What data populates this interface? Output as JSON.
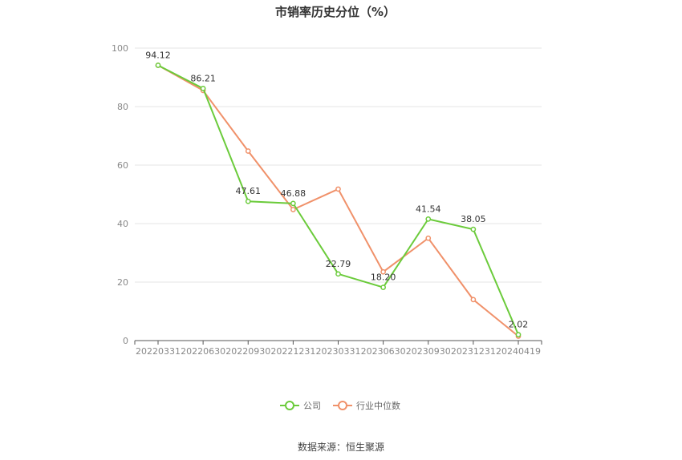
{
  "chart_data": {
    "type": "line",
    "title": "市销率历史分位（%）",
    "categories": [
      "20220331",
      "20220630",
      "20220930",
      "20221231",
      "20230331",
      "20230630",
      "20230930",
      "20231231",
      "20240419"
    ],
    "ylim": [
      0,
      100
    ],
    "yticks": [
      0,
      20,
      40,
      60,
      80,
      100
    ],
    "grid": true,
    "legend_position": "bottom",
    "series": [
      {
        "name": "公司",
        "color": "#6bcb3b",
        "values": [
          94.12,
          86.21,
          47.61,
          46.88,
          22.79,
          18.2,
          41.54,
          38.05,
          2.02
        ],
        "labels": [
          "94.12",
          "86.21",
          "47.61",
          "46.88",
          "22.79",
          "18.20",
          "41.54",
          "38.05",
          "2.02"
        ]
      },
      {
        "name": "行业中位数",
        "color": "#f0916a",
        "values": [
          94.1,
          85.5,
          64.8,
          44.8,
          51.8,
          23.5,
          35.0,
          14.0,
          1.5
        ]
      }
    ]
  },
  "source_text": "数据来源：恒生聚源"
}
